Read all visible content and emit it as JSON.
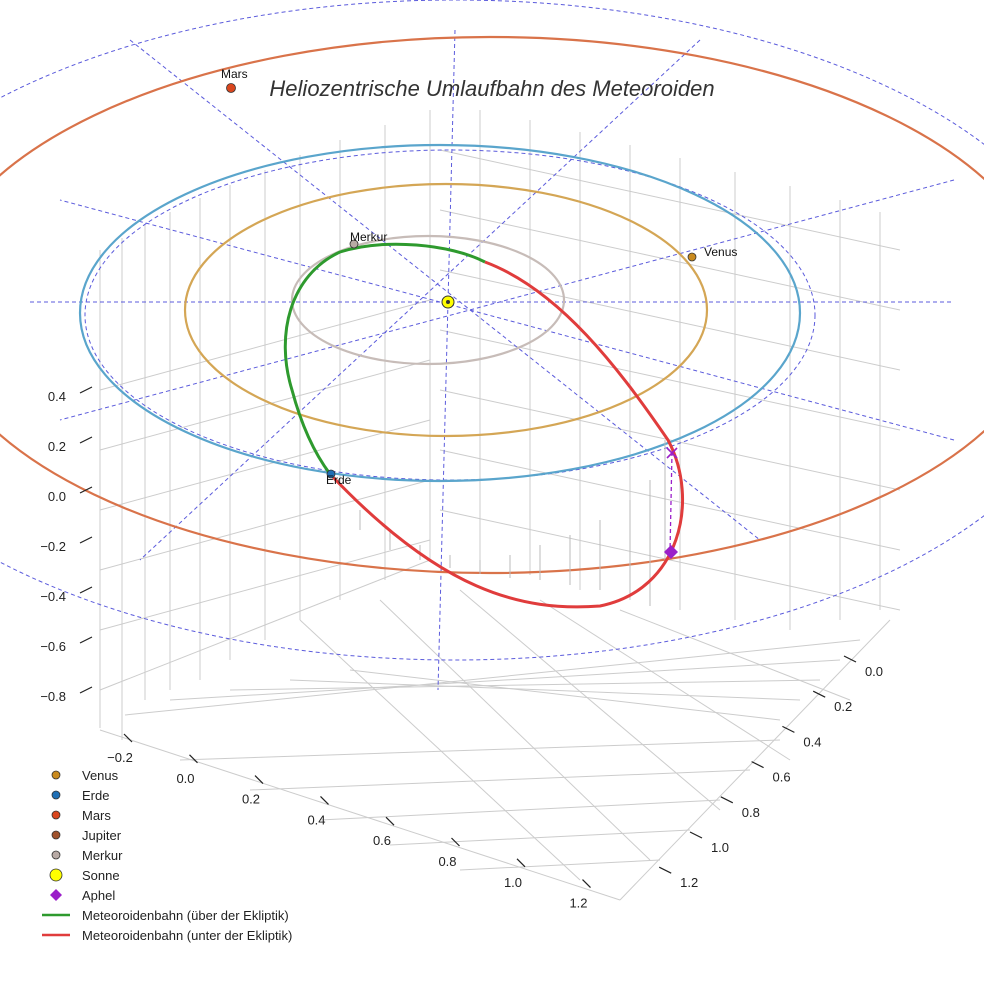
{
  "chart_data": {
    "type": "3d-line",
    "title": "Heliozentrische Umlaufbahn des Meteoroiden",
    "z_ticks": [
      "0.4",
      "0.2",
      "0.0",
      "−0.2",
      "−0.4",
      "−0.6",
      "−0.8"
    ],
    "x_ticks": [
      "−0.2",
      "0.0",
      "0.2",
      "0.4",
      "0.6",
      "0.8",
      "1.0",
      "1.2"
    ],
    "y_ticks": [
      "0.0",
      "0.2",
      "0.4",
      "0.6",
      "0.8",
      "1.0",
      "1.2"
    ],
    "planet_labels": {
      "mars": "Mars",
      "merkur": "Merkur",
      "venus": "Venus",
      "erde": "Erde"
    },
    "legend": [
      {
        "label": "Venus",
        "marker": "circle",
        "color": "#c98a1e"
      },
      {
        "label": "Erde",
        "marker": "circle",
        "color": "#1f6fb5"
      },
      {
        "label": "Mars",
        "marker": "circle",
        "color": "#d9461e"
      },
      {
        "label": "Jupiter",
        "marker": "circle",
        "color": "#a0522d"
      },
      {
        "label": "Merkur",
        "marker": "circle",
        "color": "#b8aaa5"
      },
      {
        "label": "Sonne",
        "marker": "circle",
        "color": "#ffff00"
      },
      {
        "label": "Aphel",
        "marker": "diamond",
        "color": "#9b1fc9"
      },
      {
        "label": "Meteoroidenbahn (über der Ekliptik)",
        "marker": "line",
        "color": "#2e9a2e"
      },
      {
        "label": "Meteoroidenbahn (unter der Ekliptik)",
        "marker": "line",
        "color": "#e03c3c"
      }
    ],
    "orbit_colors": {
      "mars": "#d9734a",
      "erde": "#5aa5cc",
      "venus": "#d4a655",
      "merkur": "#c7bcb8",
      "above": "#2e9a2e",
      "below": "#e03c3c"
    }
  }
}
